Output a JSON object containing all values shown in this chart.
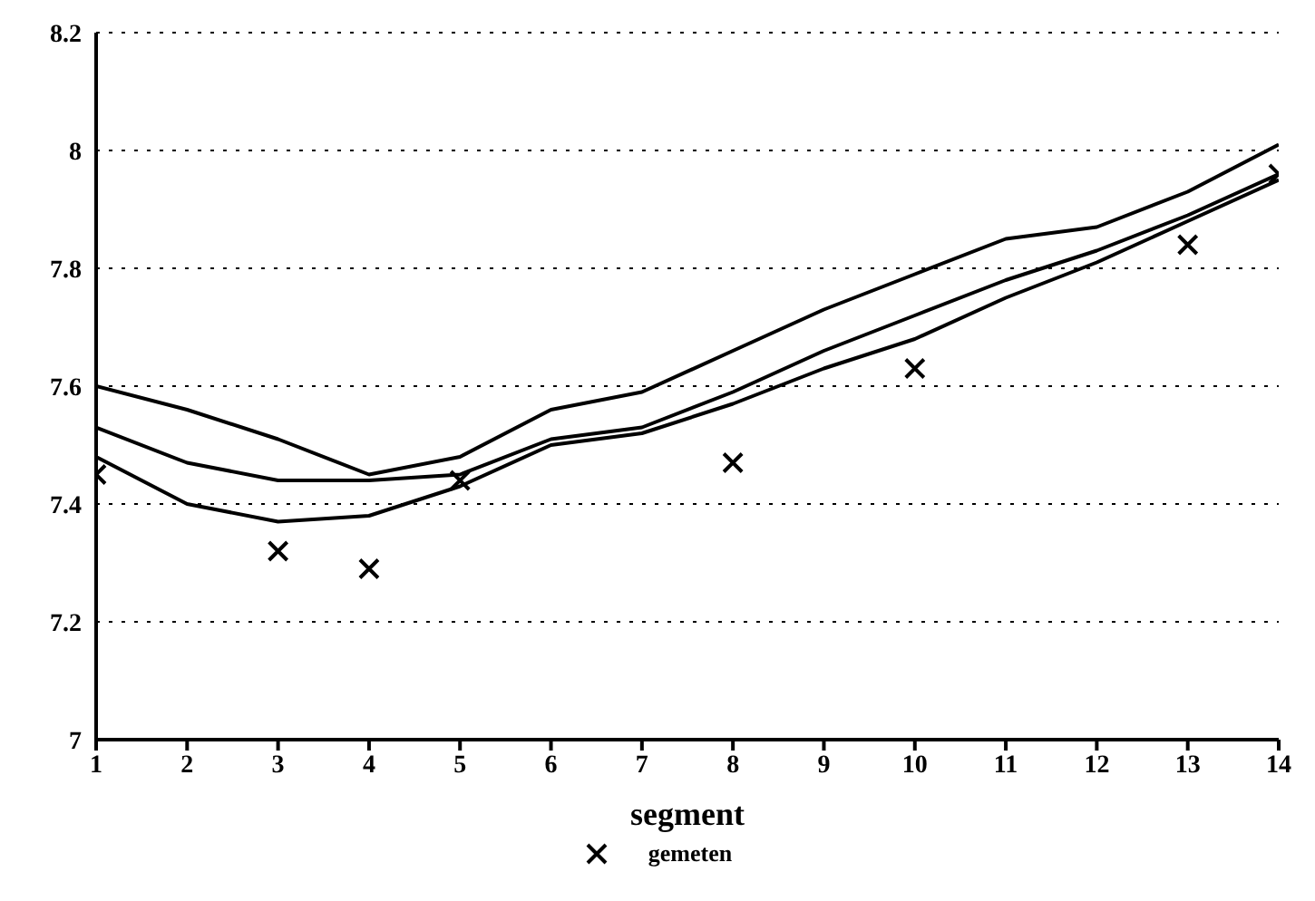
{
  "chart_data": {
    "type": "line",
    "xlabel": "segment",
    "xlim": [
      1,
      14
    ],
    "xticks": [
      1,
      2,
      3,
      4,
      5,
      6,
      7,
      8,
      9,
      10,
      11,
      12,
      13,
      14
    ],
    "ylim": [
      7,
      8.2
    ],
    "yticks": [
      7,
      7.2,
      7.4,
      7.6,
      7.8,
      8,
      8.2
    ],
    "grid": "y",
    "legend": "bottom",
    "marker": "none",
    "series": [
      {
        "color": "#000000",
        "x": [
          1,
          2,
          3,
          4,
          5,
          6,
          7,
          8,
          9,
          10,
          11,
          12,
          13,
          14
        ],
        "values": [
          7.6,
          7.56,
          7.51,
          7.45,
          7.48,
          7.56,
          7.59,
          7.66,
          7.73,
          7.79,
          7.85,
          7.87,
          7.93,
          8.01
        ]
      },
      {
        "color": "#000000",
        "x": [
          1,
          2,
          3,
          4,
          5,
          6,
          7,
          8,
          9,
          10,
          11,
          12,
          13,
          14
        ],
        "values": [
          7.48,
          7.4,
          7.37,
          7.38,
          7.43,
          7.5,
          7.52,
          7.57,
          7.63,
          7.68,
          7.75,
          7.81,
          7.88,
          7.95
        ]
      },
      {
        "name": "gemeten",
        "type": "scatter",
        "marker": "cross",
        "color": "#000000",
        "x": [
          1,
          3,
          4,
          5,
          8,
          10,
          13,
          14
        ],
        "values": [
          7.45,
          7.32,
          7.29,
          7.44,
          7.47,
          7.63,
          7.84,
          7.96
        ]
      },
      {
        "color": "#000000",
        "x": [
          1,
          2,
          3,
          4,
          5,
          6,
          7,
          8,
          9,
          10,
          11,
          12,
          13,
          14
        ],
        "values": [
          7.53,
          7.47,
          7.44,
          7.44,
          7.45,
          7.51,
          7.53,
          7.59,
          7.66,
          7.72,
          7.78,
          7.83,
          7.89,
          7.96
        ]
      }
    ]
  }
}
